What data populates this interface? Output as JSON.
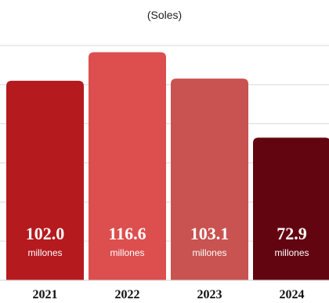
{
  "chart_data": {
    "type": "bar",
    "subtitle": "(Soles)",
    "categories": [
      "2021",
      "2022",
      "2023",
      "2024"
    ],
    "values": [
      102.0,
      116.6,
      103.1,
      72.9
    ],
    "value_labels": [
      "102.0",
      "116.6",
      "103.1",
      "72.9"
    ],
    "unit_label": "millones",
    "colors": [
      "#b51a1e",
      "#dc4f4e",
      "#c85350",
      "#620510"
    ],
    "grid": true,
    "ylim": [
      0,
      120
    ]
  }
}
